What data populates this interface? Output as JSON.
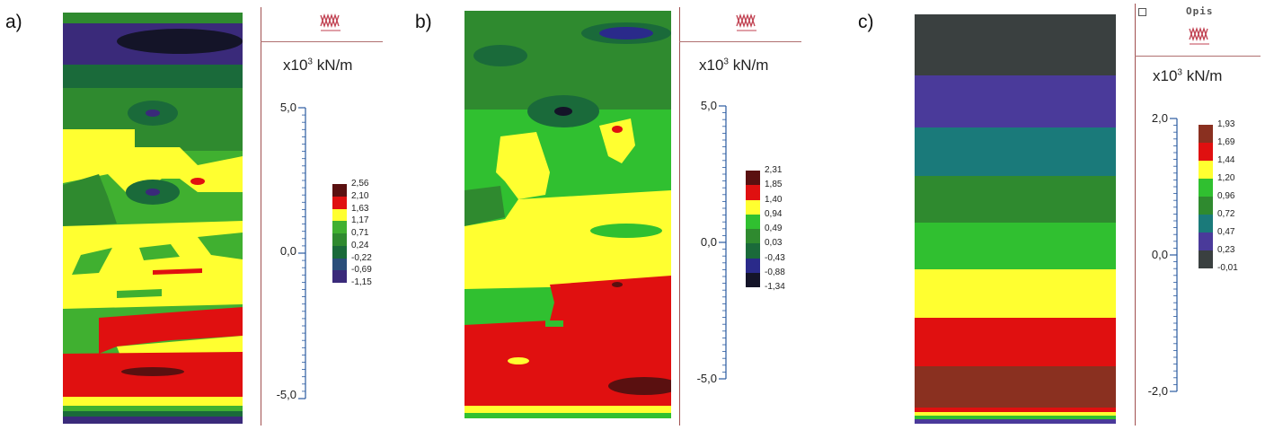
{
  "panels": [
    {
      "label": "a)",
      "units_prefix": "x10",
      "units_exp": "3",
      "units_suffix": " kN/m",
      "axis_ticks": [
        "5,0",
        "0,0",
        "-5,0"
      ],
      "legend_values": [
        "2,56",
        "2,10",
        "1,63",
        "1,17",
        "0,71",
        "0,24",
        "-0,22",
        "-0,69",
        "-1,15"
      ],
      "legend_colors": [
        "#5a1010",
        "#e01010",
        "#ffff30",
        "#40b030",
        "#2f8a2f",
        "#1a6a3a",
        "#2a4e7a",
        "#3a2a7a"
      ]
    },
    {
      "label": "b)",
      "units_prefix": "x10",
      "units_exp": "3",
      "units_suffix": " kN/m",
      "axis_ticks": [
        "5,0",
        "0,0",
        "-5,0"
      ],
      "legend_values": [
        "2,31",
        "1,85",
        "1,40",
        "0,94",
        "0,49",
        "0,03",
        "-0,43",
        "-0,88",
        "-1,34"
      ],
      "legend_colors": [
        "#5a1010",
        "#e01010",
        "#ffff30",
        "#30c030",
        "#2f8a2f",
        "#1a6a3a",
        "#2a2a8a",
        "#141428"
      ]
    },
    {
      "label": "c)",
      "units_prefix": "x10",
      "units_exp": "3",
      "units_suffix": " kN/m",
      "header": "Opis",
      "axis_ticks": [
        "2,0",
        "0,0",
        "-2,0"
      ],
      "legend_values": [
        "1,93",
        "1,69",
        "1,44",
        "1,20",
        "0,96",
        "0,72",
        "0,47",
        "0,23",
        "-0,01"
      ],
      "legend_colors": [
        "#8a3020",
        "#e01010",
        "#ffff30",
        "#30c030",
        "#2f8a2f",
        "#1a7a7a",
        "#4a3a9a",
        "#3a4040"
      ]
    }
  ],
  "chart_data": [
    {
      "type": "heatmap",
      "title": "",
      "unit": "x10^3 kN/m",
      "axis_range": [
        -5.0,
        5.0
      ],
      "color_levels": [
        2.56,
        2.1,
        1.63,
        1.17,
        0.71,
        0.24,
        -0.22,
        -0.69,
        -1.15
      ]
    },
    {
      "type": "heatmap",
      "title": "",
      "unit": "x10^3 kN/m",
      "axis_range": [
        -5.0,
        5.0
      ],
      "color_levels": [
        2.31,
        1.85,
        1.4,
        0.94,
        0.49,
        0.03,
        -0.43,
        -0.88,
        -1.34
      ]
    },
    {
      "type": "heatmap",
      "title": "",
      "unit": "x10^3 kN/m",
      "axis_range": [
        -2.0,
        2.0
      ],
      "color_levels": [
        1.93,
        1.69,
        1.44,
        1.2,
        0.96,
        0.72,
        0.47,
        0.23,
        -0.01
      ]
    }
  ]
}
